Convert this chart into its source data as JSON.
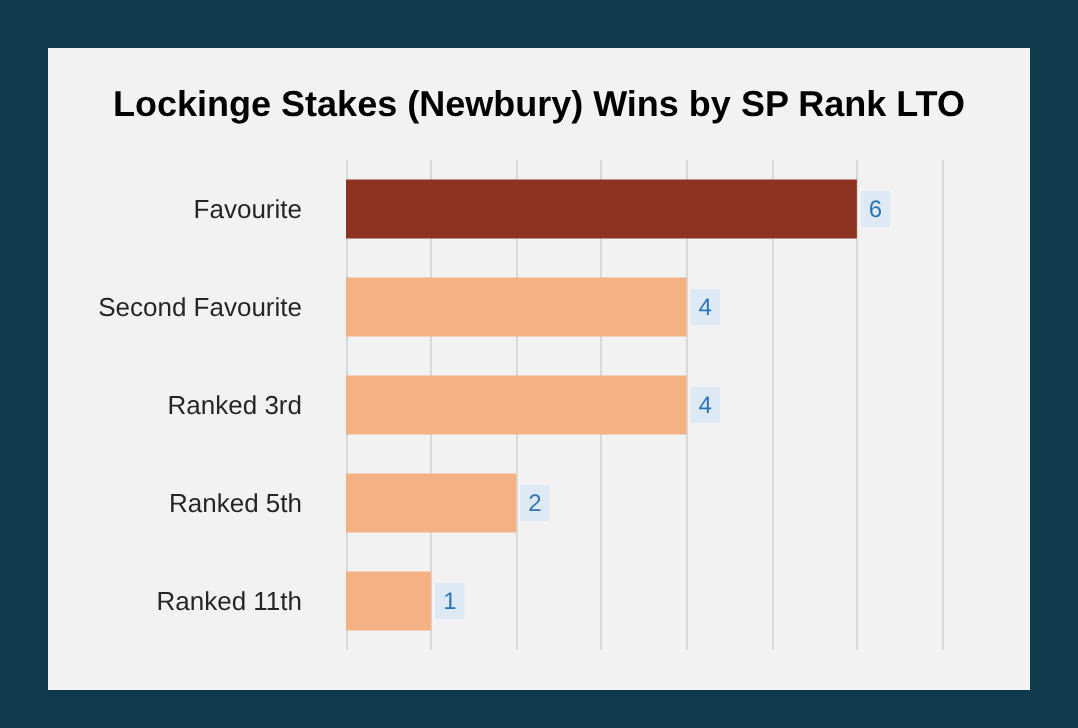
{
  "chart_data": {
    "type": "bar",
    "orientation": "horizontal",
    "title": "Lockinge Stakes (Newbury) Wins by SP Rank LTO",
    "categories": [
      "Favourite",
      "Second Favourite",
      "Ranked 3rd",
      "Ranked 5th",
      "Ranked 11th"
    ],
    "values": [
      6,
      4,
      4,
      2,
      1
    ],
    "colors": [
      "#8b3320",
      "#f4b183",
      "#f4b183",
      "#f4b183",
      "#f4b183"
    ],
    "xlim": [
      0,
      7
    ],
    "xticks": [
      {
        "value": 0,
        "label": null
      },
      {
        "value": 1,
        "label": null
      },
      {
        "value": 2,
        "label": null
      },
      {
        "value": 3,
        "label": null
      },
      {
        "value": 4,
        "label": null
      },
      {
        "value": 5,
        "label": null
      },
      {
        "value": 6,
        "label": null
      },
      {
        "value": 7,
        "label": null
      }
    ],
    "grid": "x",
    "tick_labels": "y",
    "data_labels": true
  }
}
